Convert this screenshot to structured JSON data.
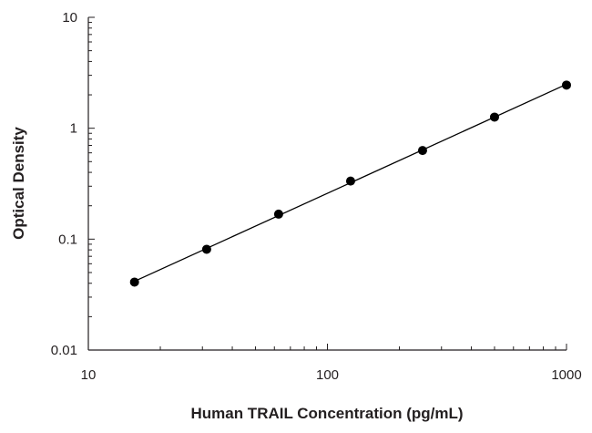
{
  "chart_data": {
    "type": "scatter",
    "title": "",
    "xlabel": "Human TRAIL Concentration (pg/mL)",
    "ylabel": "Optical Density",
    "x_scale": "log",
    "y_scale": "log",
    "xlim": [
      10,
      1000
    ],
    "ylim": [
      0.01,
      10
    ],
    "x_ticks": [
      "10",
      "100",
      "1000"
    ],
    "y_ticks": [
      "0.01",
      "0.1",
      "1",
      "10"
    ],
    "grid": false,
    "legend": "none",
    "series": [
      {
        "x": [
          15.6,
          31.25,
          62.5,
          125,
          250,
          500,
          1000
        ],
        "y": [
          0.041,
          0.081,
          0.168,
          0.334,
          0.63,
          1.26,
          2.45
        ]
      }
    ],
    "colors": {
      "axis": "#231f20",
      "marker": "#000000",
      "line": "#000000"
    }
  }
}
